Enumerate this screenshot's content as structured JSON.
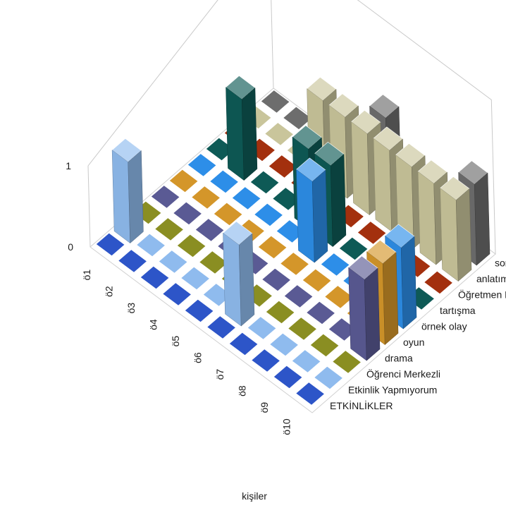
{
  "chart_data": {
    "type": "bar3d",
    "title": "",
    "xlabel": "kişiler",
    "ylabel": "",
    "zlim": [
      0,
      1
    ],
    "z_ticks": [
      "0",
      "1"
    ],
    "grid": true,
    "legend": "none",
    "x": [
      "ö1",
      "ö2",
      "ö3",
      "ö4",
      "ö5",
      "ö6",
      "ö7",
      "ö8",
      "ö9",
      "ö10"
    ],
    "series": [
      {
        "name": "ETKİNLİKLER",
        "color": "#2d55c8",
        "values": [
          0,
          0,
          0,
          0,
          0,
          0,
          0,
          0,
          0,
          0
        ]
      },
      {
        "name": "Etkinlik Yapmıyorum",
        "color": "#8fbbee",
        "values": [
          1,
          0,
          0,
          0,
          0,
          1,
          0,
          0,
          0,
          0
        ]
      },
      {
        "name": "Öğrenci Merkezli",
        "color": "#8a8e22",
        "values": [
          0,
          0,
          0,
          0,
          0,
          0,
          0,
          0,
          0,
          0
        ]
      },
      {
        "name": "drama",
        "color": "#5a5a94",
        "values": [
          0,
          0,
          0,
          0,
          0,
          0,
          0,
          0,
          0,
          1
        ]
      },
      {
        "name": "oyun",
        "color": "#d4962a",
        "values": [
          0,
          0,
          0,
          0,
          0,
          0,
          0,
          0,
          0,
          1
        ]
      },
      {
        "name": "örnek olay",
        "color": "#2d8ee8",
        "values": [
          0,
          0,
          0,
          0,
          0,
          1,
          0,
          0,
          0,
          1
        ]
      },
      {
        "name": "tartışma",
        "color": "#0e5a56",
        "values": [
          0,
          1,
          0,
          0,
          1,
          1,
          0,
          0,
          0,
          0
        ]
      },
      {
        "name": "Öğretmen Merkezli",
        "color": "#a3300e",
        "values": [
          0,
          0,
          0,
          0,
          0,
          0,
          0,
          0,
          0,
          0
        ]
      },
      {
        "name": "anlatım",
        "color": "#c9c59b",
        "values": [
          0,
          0,
          0,
          1,
          1,
          1,
          1,
          1,
          1,
          1
        ]
      },
      {
        "name": "soru-cevap",
        "color": "#6d6d6d",
        "values": [
          0,
          0,
          0,
          0,
          0,
          1,
          0,
          0,
          0,
          1
        ]
      }
    ]
  }
}
